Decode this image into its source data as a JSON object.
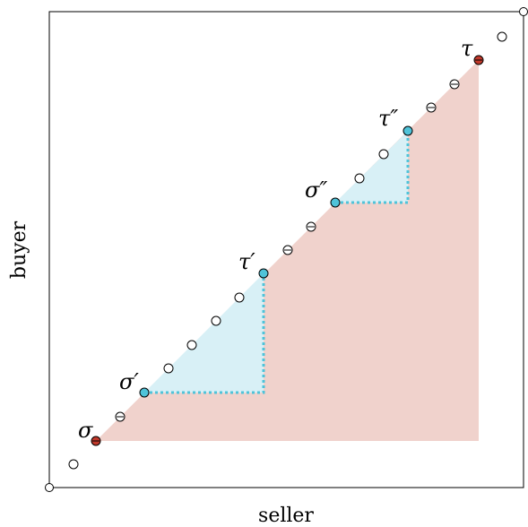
{
  "axes": {
    "x_label": "seller",
    "y_label": "buyer"
  },
  "labels": {
    "sigma": "σ",
    "tau": "τ",
    "sigma_prime": "σ′",
    "tau_prime": "τ′",
    "sigma_dprime": "σ″",
    "tau_dprime": "τ″"
  },
  "colors": {
    "region_main": "#f0d2cc",
    "region_sub": "#d8f0f6",
    "endpoint": "#c0392b",
    "key_point": "#4fc3d9",
    "dotted": "#4fc3d9",
    "outline": "#000000"
  },
  "points": {
    "open": [
      "p1",
      "p2",
      "p3",
      "p4",
      "p5",
      "p6",
      "p7",
      "p8"
    ],
    "minus": [
      "m1",
      "m2",
      "m3",
      "m4"
    ]
  }
}
